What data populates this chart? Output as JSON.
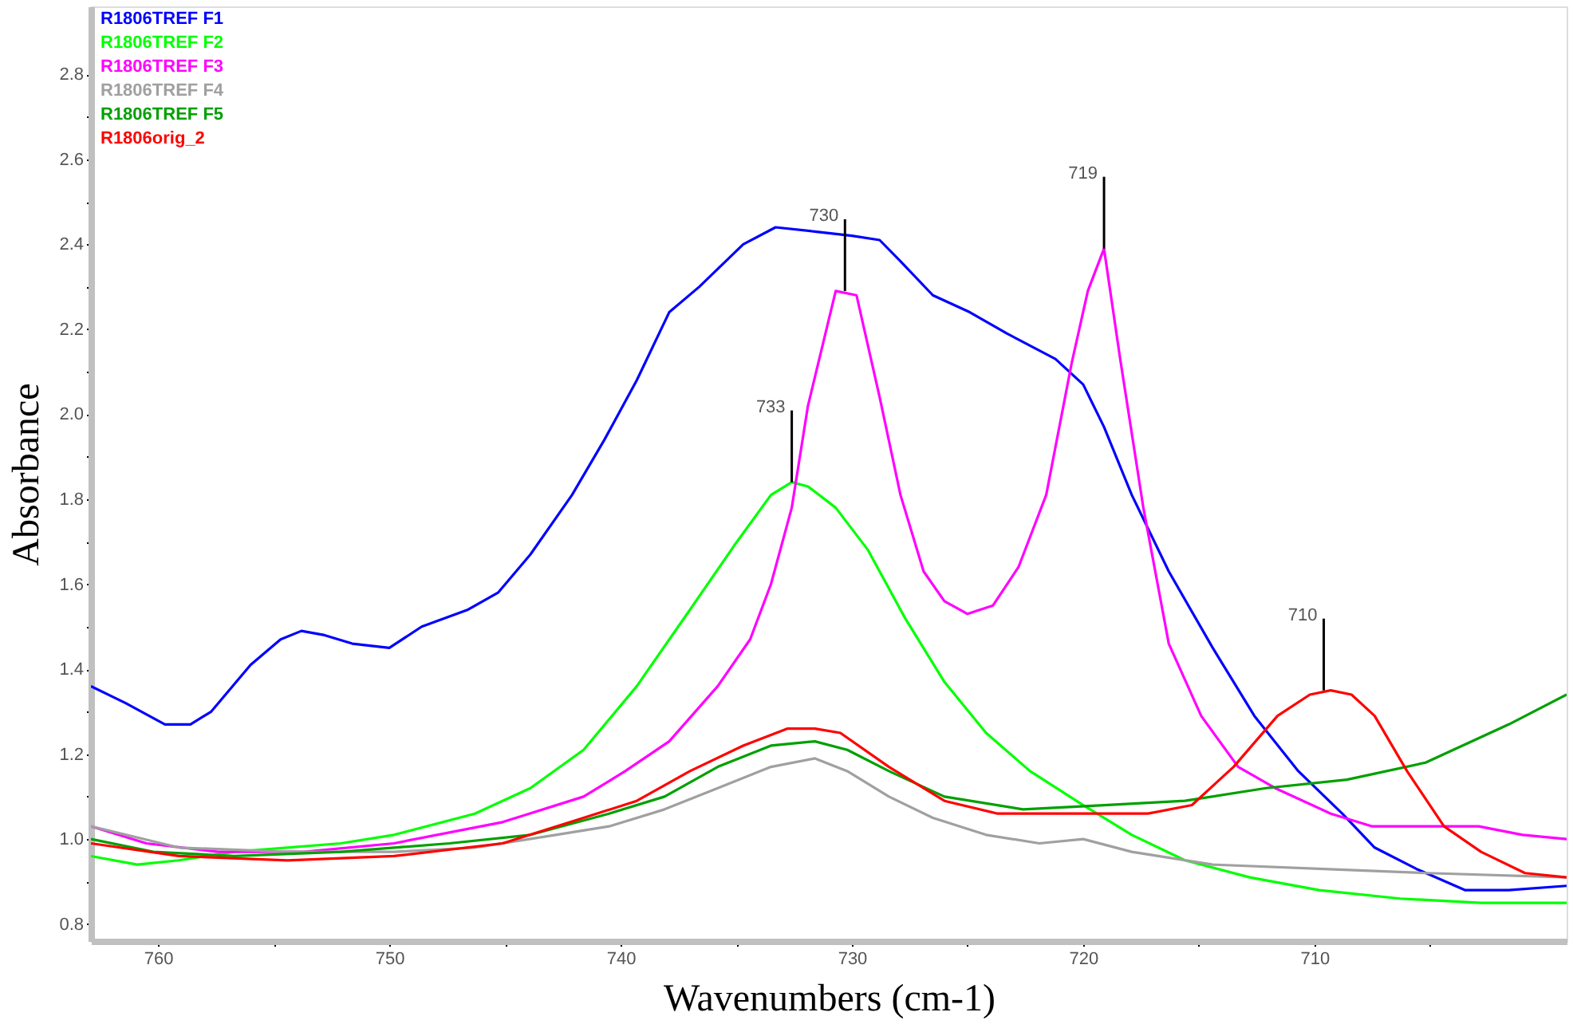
{
  "chart_data": {
    "type": "line",
    "xlabel": "Wavenumbers (cm-1)",
    "ylabel": "Absorbance",
    "xlim": [
      762.9,
      699.1
    ],
    "ylim": [
      0.76,
      2.96
    ],
    "xticks": [
      760,
      {
        "value": 755,
        "label": null
      },
      750,
      {
        "value": 745,
        "label": null
      },
      740,
      {
        "value": 735,
        "label": null
      },
      730,
      {
        "value": 725,
        "label": null
      },
      720,
      {
        "value": 715,
        "label": null
      },
      710,
      {
        "value": 705,
        "label": null
      }
    ],
    "yticks": [
      0.8,
      {
        "value": 0.9,
        "label": null
      },
      {
        "value": 1.0,
        "label": "1.0"
      },
      {
        "value": 1.1,
        "label": null
      },
      1.2,
      {
        "value": 1.3,
        "label": null
      },
      1.4,
      {
        "value": 1.5,
        "label": null
      },
      1.6,
      {
        "value": 1.7,
        "label": null
      },
      1.8,
      {
        "value": 1.9,
        "label": null
      },
      {
        "value": 2.0,
        "label": "2.0"
      },
      {
        "value": 2.1,
        "label": null
      },
      2.2,
      {
        "value": 2.3,
        "label": null
      },
      2.4,
      {
        "value": 2.5,
        "label": null
      },
      2.6,
      {
        "value": 2.7,
        "label": null
      },
      2.8
    ],
    "grid": false,
    "legend": "top left",
    "marker": "none",
    "line_style": "solid",
    "series": [
      {
        "name": "R1806TREF F1",
        "color": "#0000ff",
        "x": [
          762.9,
          761.4,
          759.7,
          758.6,
          757.7,
          756.0,
          754.7,
          753.8,
          752.8,
          751.6,
          750.0,
          748.6,
          746.6,
          745.3,
          743.9,
          742.1,
          740.7,
          739.3,
          737.9,
          736.6,
          734.7,
          733.3,
          731.6,
          730.0,
          728.8,
          727.9,
          726.5,
          724.9,
          723.3,
          721.2,
          720.0,
          719.1,
          717.9,
          716.3,
          714.4,
          712.6,
          710.7,
          708.8,
          707.4,
          705.6,
          703.5,
          701.6,
          699.1
        ],
        "values": [
          1.36,
          1.32,
          1.27,
          1.27,
          1.3,
          1.41,
          1.47,
          1.49,
          1.48,
          1.46,
          1.45,
          1.5,
          1.54,
          1.58,
          1.67,
          1.81,
          1.94,
          2.08,
          2.24,
          2.3,
          2.4,
          2.44,
          2.43,
          2.42,
          2.41,
          2.36,
          2.28,
          2.24,
          2.19,
          2.13,
          2.07,
          1.97,
          1.81,
          1.63,
          1.45,
          1.29,
          1.16,
          1.06,
          0.98,
          0.93,
          0.88,
          0.88,
          0.89
        ]
      },
      {
        "name": "R1806TREF F2",
        "color": "#00ff00",
        "x": [
          762.9,
          760.9,
          759.1,
          756.7,
          752.1,
          749.8,
          746.3,
          743.9,
          741.6,
          739.3,
          737.0,
          735.1,
          733.5,
          732.6,
          731.9,
          730.7,
          729.3,
          727.7,
          726.0,
          724.2,
          722.3,
          720.0,
          717.9,
          715.6,
          712.8,
          709.8,
          706.3,
          702.8,
          699.1
        ],
        "values": [
          0.96,
          0.94,
          0.95,
          0.97,
          0.99,
          1.01,
          1.06,
          1.12,
          1.21,
          1.36,
          1.54,
          1.69,
          1.81,
          1.84,
          1.83,
          1.78,
          1.68,
          1.52,
          1.37,
          1.25,
          1.16,
          1.08,
          1.01,
          0.95,
          0.91,
          0.88,
          0.86,
          0.85,
          0.85
        ]
      },
      {
        "name": "R1806TREF F3",
        "color": "#ff00ff",
        "x": [
          762.9,
          760.5,
          757.4,
          753.7,
          749.8,
          745.1,
          741.6,
          739.8,
          737.9,
          735.8,
          734.4,
          733.5,
          732.6,
          731.9,
          730.7,
          729.8,
          728.8,
          727.9,
          726.9,
          726.0,
          725.0,
          723.9,
          722.8,
          721.6,
          720.5,
          719.8,
          719.1,
          718.4,
          717.4,
          716.3,
          714.9,
          713.3,
          711.7,
          709.3,
          707.5,
          705.2,
          702.9,
          701.0,
          699.1
        ],
        "values": [
          1.03,
          0.99,
          0.97,
          0.97,
          0.99,
          1.04,
          1.1,
          1.16,
          1.23,
          1.36,
          1.47,
          1.6,
          1.78,
          2.02,
          2.29,
          2.28,
          2.04,
          1.81,
          1.63,
          1.56,
          1.53,
          1.55,
          1.64,
          1.81,
          2.12,
          2.29,
          2.39,
          2.13,
          1.78,
          1.46,
          1.29,
          1.17,
          1.12,
          1.06,
          1.03,
          1.03,
          1.03,
          1.01,
          1.0
        ]
      },
      {
        "name": "R1806TREF F4",
        "color": "#a0a0a0",
        "x": [
          762.9,
          759.1,
          754.4,
          749.8,
          746.3,
          742.8,
          740.5,
          738.1,
          735.8,
          733.5,
          731.6,
          730.2,
          728.4,
          726.5,
          724.2,
          721.9,
          720.0,
          717.9,
          714.4,
          709.8,
          705.1,
          699.1
        ],
        "values": [
          1.03,
          0.98,
          0.97,
          0.97,
          0.98,
          1.01,
          1.03,
          1.07,
          1.12,
          1.17,
          1.19,
          1.16,
          1.1,
          1.05,
          1.01,
          0.99,
          1.0,
          0.97,
          0.94,
          0.93,
          0.92,
          0.91
        ]
      },
      {
        "name": "R1806TREF F5",
        "color": "#00a000",
        "x": [
          762.9,
          760.2,
          756.7,
          752.1,
          747.4,
          743.9,
          740.5,
          738.1,
          735.8,
          733.5,
          731.6,
          730.2,
          728.4,
          726.0,
          722.6,
          719.1,
          715.6,
          712.1,
          708.6,
          705.2,
          701.6,
          699.1
        ],
        "values": [
          1.0,
          0.97,
          0.96,
          0.97,
          0.99,
          1.01,
          1.06,
          1.1,
          1.17,
          1.22,
          1.23,
          1.21,
          1.16,
          1.1,
          1.07,
          1.08,
          1.09,
          1.12,
          1.14,
          1.18,
          1.27,
          1.34
        ]
      },
      {
        "name": "R1806orig_2",
        "color": "#ff0000",
        "x": [
          762.9,
          759.1,
          754.4,
          749.8,
          745.1,
          741.6,
          739.3,
          737.0,
          734.7,
          732.8,
          731.6,
          730.5,
          728.4,
          726.0,
          723.7,
          720.2,
          717.2,
          715.3,
          713.5,
          711.6,
          710.2,
          709.3,
          708.4,
          707.4,
          706.0,
          704.4,
          702.8,
          700.9,
          699.1
        ],
        "values": [
          0.99,
          0.96,
          0.95,
          0.96,
          0.99,
          1.05,
          1.09,
          1.16,
          1.22,
          1.26,
          1.26,
          1.25,
          1.17,
          1.09,
          1.06,
          1.06,
          1.06,
          1.08,
          1.17,
          1.29,
          1.34,
          1.35,
          1.34,
          1.29,
          1.16,
          1.03,
          0.97,
          0.92,
          0.91
        ]
      }
    ],
    "annotations": [
      {
        "text": "733",
        "x": 732.6,
        "y": 1.84
      },
      {
        "text": "730",
        "x": 730.3,
        "y": 2.29
      },
      {
        "text": "719",
        "x": 719.1,
        "y": 2.39
      },
      {
        "text": "710",
        "x": 709.6,
        "y": 1.35
      }
    ]
  }
}
